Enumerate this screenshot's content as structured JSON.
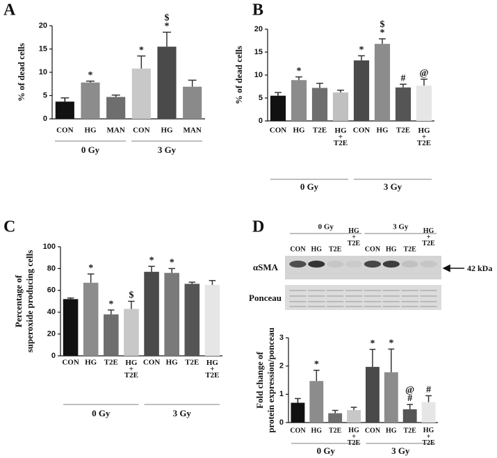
{
  "chart_data": [
    {
      "type": "bar",
      "panel": "A",
      "ylabel": "% of dead cells",
      "categories": [
        "CON",
        "HG",
        "MAN",
        "CON",
        "HG",
        "MAN"
      ],
      "values": [
        3.7,
        7.8,
        4.7,
        10.8,
        15.5,
        6.9
      ],
      "errors": [
        0.8,
        0.3,
        0.4,
        2.7,
        3.1,
        1.4
      ],
      "colors": [
        "#111111",
        "#8c8c8c",
        "#6e6e6e",
        "#c8c8c8",
        "#4a4a4a",
        "#8a8a8a"
      ],
      "annotations": [
        null,
        "*",
        null,
        "*",
        "$\n*",
        null
      ],
      "groups": [
        "0 Gy",
        "3 Gy"
      ],
      "ylim": [
        0,
        20
      ],
      "yticks": [
        0,
        5,
        10,
        15,
        20
      ]
    },
    {
      "type": "bar",
      "panel": "B",
      "ylabel": "% of dead cells",
      "categories": [
        "CON",
        "HG",
        "T2E",
        "HG\n+\nT2E",
        "CON",
        "HG",
        "T2E",
        "HG\n+\nT2E"
      ],
      "values": [
        5.5,
        8.9,
        7.2,
        6.2,
        13.2,
        16.8,
        7.3,
        7.7
      ],
      "errors": [
        0.7,
        0.7,
        1.0,
        0.5,
        1.0,
        1.1,
        0.7,
        1.4
      ],
      "colors": [
        "#111111",
        "#8c8c8c",
        "#6e6e6e",
        "#c0c0c0",
        "#4a4a4a",
        "#8c8c8c",
        "#555555",
        "#e6e6e6"
      ],
      "annotations": [
        null,
        "*",
        null,
        null,
        "*",
        "$\n*",
        "#",
        "@"
      ],
      "groups": [
        "0 Gy",
        "3 Gy"
      ],
      "ylim": [
        0,
        20
      ],
      "yticks": [
        0,
        5,
        10,
        15,
        20
      ]
    },
    {
      "type": "bar",
      "panel": "C",
      "ylabel": "Percentage of\nsuperoxide producing cells",
      "categories": [
        "CON",
        "HG",
        "T2E",
        "HG\n+\nT2E",
        "CON",
        "HG",
        "T2E",
        "HG\n+\nT2E"
      ],
      "values": [
        52,
        67,
        38,
        43,
        77,
        76,
        66,
        65
      ],
      "errors": [
        1,
        8,
        4,
        7,
        5,
        4,
        1.5,
        4
      ],
      "colors": [
        "#111111",
        "#8c8c8c",
        "#6e6e6e",
        "#c8c8c8",
        "#4a4a4a",
        "#7a7a7a",
        "#555555",
        "#e6e6e6"
      ],
      "annotations": [
        null,
        "*",
        "*",
        "$",
        "*",
        "*",
        null,
        null
      ],
      "groups": [
        "0 Gy",
        "3 Gy"
      ],
      "ylim": [
        0,
        100
      ],
      "yticks": [
        0,
        20,
        40,
        60,
        80,
        100
      ]
    },
    {
      "type": "bar",
      "panel": "D",
      "ylabel": "Fold change of\nprotein expression/ponceau",
      "categories": [
        "CON",
        "HG",
        "T2E",
        "HG\n+\nT2E",
        "CON",
        "HG",
        "T2E",
        "HG\n+\nT2E"
      ],
      "values": [
        0.7,
        1.47,
        0.33,
        0.44,
        1.97,
        1.78,
        0.47,
        0.72
      ],
      "errors": [
        0.15,
        0.38,
        0.1,
        0.1,
        0.62,
        0.82,
        0.17,
        0.23
      ],
      "colors": [
        "#111111",
        "#8c8c8c",
        "#6e6e6e",
        "#c8c8c8",
        "#4a4a4a",
        "#8c8c8c",
        "#555555",
        "#e6e6e6"
      ],
      "annotations": [
        null,
        "*",
        null,
        null,
        "*",
        "*",
        "@\n#",
        "#"
      ],
      "groups": [
        "0 Gy",
        "3 Gy"
      ],
      "ylim": [
        0,
        3
      ],
      "yticks": [
        0,
        1,
        2,
        3
      ],
      "blot": {
        "rows": [
          "αSMA",
          "Ponceau"
        ],
        "marker": "42 kDa"
      }
    }
  ]
}
